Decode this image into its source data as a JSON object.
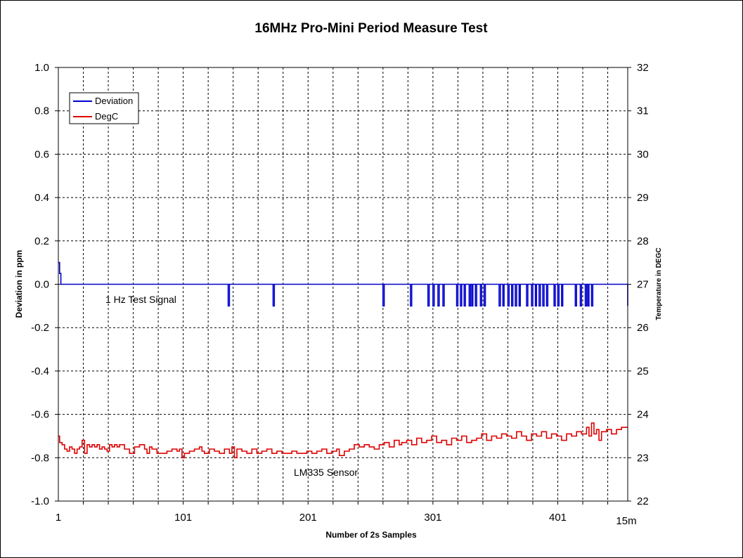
{
  "chart_data": {
    "type": "line",
    "title": "16MHz Pro-Mini Period Measure Test",
    "xlabel": "Number of 2s Samples",
    "ylabel": "Deviation in ppm",
    "y2label": "Temperature in DEGC",
    "x_tick_labels": [
      "1",
      "101",
      "201",
      "301",
      "401"
    ],
    "x_extra_label": "15m",
    "xlim": [
      1,
      457
    ],
    "ylim": [
      -1.0,
      1.0
    ],
    "y_ticks": [
      "-1.0",
      "-0.8",
      "-0.6",
      "-0.4",
      "-0.2",
      "0.0",
      "0.2",
      "0.4",
      "0.6",
      "0.8",
      "1.0"
    ],
    "y2lim": [
      22,
      32
    ],
    "y2_ticks": [
      "22",
      "23",
      "24",
      "25",
      "26",
      "27",
      "28",
      "29",
      "30",
      "31",
      "32"
    ],
    "grid": true,
    "legend_position": "top-left",
    "annotations": [
      {
        "text": "1 Hz Test Signal",
        "x": 39,
        "y": -0.07
      },
      {
        "text": "LM335 Sensor",
        "x": 190,
        "y": -0.88
      }
    ],
    "series": [
      {
        "name": "Deviation",
        "axis": "left",
        "color": "#0000cc",
        "step": true,
        "x": [
          1,
          2,
          3,
          137,
          138,
          173,
          174,
          261,
          262,
          283,
          284,
          297,
          298,
          301,
          302,
          305,
          306,
          309,
          310,
          320,
          321,
          323,
          324,
          326,
          327,
          330,
          331,
          332,
          333,
          335,
          336,
          339,
          340,
          342,
          343,
          354,
          355,
          357,
          358,
          361,
          362,
          364,
          365,
          367,
          368,
          370,
          371,
          376,
          377,
          380,
          381,
          383,
          384,
          386,
          387,
          389,
          390,
          392,
          393,
          398,
          399,
          401,
          402,
          404,
          405,
          415,
          416,
          419,
          420,
          423,
          424,
          425,
          426,
          428,
          429,
          457
        ],
        "values": [
          0.1,
          0.05,
          0.0,
          -0.1,
          0.0,
          -0.1,
          0.0,
          -0.1,
          0.0,
          -0.1,
          0.0,
          -0.1,
          0.0,
          -0.1,
          0.0,
          -0.1,
          0.0,
          -0.1,
          0.0,
          -0.1,
          0.0,
          -0.1,
          0.0,
          -0.1,
          0.0,
          -0.1,
          0.0,
          -0.1,
          0.0,
          -0.1,
          0.0,
          -0.1,
          0.0,
          -0.1,
          0.0,
          -0.1,
          0.0,
          -0.1,
          0.0,
          -0.1,
          0.0,
          -0.1,
          0.0,
          -0.1,
          0.0,
          -0.1,
          0.0,
          -0.1,
          0.0,
          -0.1,
          0.0,
          -0.1,
          0.0,
          -0.1,
          0.0,
          -0.1,
          0.0,
          -0.1,
          0.0,
          -0.1,
          0.0,
          -0.1,
          0.0,
          -0.1,
          0.0,
          -0.1,
          0.0,
          -0.1,
          0.0,
          -0.1,
          0.0,
          -0.1,
          0.0,
          -0.1,
          0.0,
          -0.1
        ]
      },
      {
        "name": "DegC",
        "axis": "right",
        "color": "#dd0000",
        "step": true,
        "x": [
          1,
          2,
          4,
          6,
          8,
          10,
          12,
          14,
          16,
          18,
          20,
          22,
          24,
          26,
          28,
          30,
          32,
          34,
          36,
          38,
          40,
          42,
          44,
          46,
          48,
          50,
          54,
          58,
          62,
          66,
          70,
          72,
          74,
          76,
          80,
          84,
          88,
          92,
          96,
          98,
          100,
          102,
          106,
          110,
          114,
          116,
          118,
          122,
          126,
          130,
          134,
          138,
          140,
          142,
          144,
          148,
          152,
          156,
          160,
          164,
          168,
          172,
          176,
          180,
          184,
          188,
          192,
          196,
          200,
          204,
          208,
          212,
          216,
          220,
          224,
          226,
          230,
          234,
          238,
          242,
          246,
          250,
          254,
          258,
          262,
          266,
          270,
          274,
          276,
          280,
          284,
          288,
          292,
          296,
          300,
          304,
          308,
          312,
          316,
          320,
          324,
          328,
          332,
          336,
          340,
          344,
          348,
          352,
          356,
          360,
          364,
          368,
          372,
          376,
          380,
          384,
          388,
          392,
          396,
          400,
          404,
          408,
          412,
          416,
          420,
          424,
          426,
          428,
          430,
          432,
          434,
          436,
          440,
          444,
          448,
          452,
          457
        ],
        "values": [
          23.5,
          23.35,
          23.3,
          23.2,
          23.15,
          23.25,
          23.2,
          23.1,
          23.2,
          23.25,
          23.4,
          23.1,
          23.3,
          23.25,
          23.3,
          23.25,
          23.3,
          23.2,
          23.25,
          23.2,
          23.15,
          23.3,
          23.25,
          23.3,
          23.25,
          23.3,
          23.2,
          23.1,
          23.25,
          23.3,
          23.2,
          23.1,
          23.25,
          23.2,
          23.1,
          23.1,
          23.15,
          23.2,
          23.15,
          23.2,
          23.0,
          23.1,
          23.15,
          23.2,
          23.25,
          23.15,
          23.1,
          23.2,
          23.15,
          23.1,
          23.2,
          23.1,
          23.25,
          23.0,
          23.2,
          23.15,
          23.1,
          23.2,
          23.1,
          23.15,
          23.2,
          23.1,
          23.15,
          23.1,
          23.1,
          23.15,
          23.1,
          23.1,
          23.15,
          23.1,
          23.15,
          23.2,
          23.1,
          23.15,
          23.2,
          23.05,
          23.15,
          23.2,
          23.3,
          23.25,
          23.3,
          23.25,
          23.2,
          23.3,
          23.35,
          23.25,
          23.4,
          23.3,
          23.35,
          23.4,
          23.3,
          23.45,
          23.35,
          23.4,
          23.5,
          23.35,
          23.4,
          23.3,
          23.45,
          23.4,
          23.5,
          23.35,
          23.4,
          23.45,
          23.55,
          23.4,
          23.5,
          23.45,
          23.55,
          23.5,
          23.45,
          23.6,
          23.5,
          23.4,
          23.55,
          23.5,
          23.6,
          23.45,
          23.55,
          23.5,
          23.4,
          23.55,
          23.5,
          23.6,
          23.55,
          23.7,
          23.5,
          23.8,
          23.55,
          23.65,
          23.4,
          23.6,
          23.65,
          23.55,
          23.65,
          23.7,
          23.7
        ]
      }
    ]
  }
}
